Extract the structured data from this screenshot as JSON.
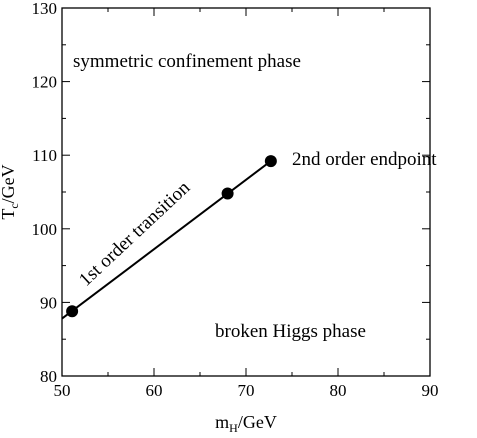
{
  "chart_data": {
    "type": "line",
    "xlabel_main": "m",
    "xlabel_sub": "H",
    "xlabel_unit": "/GeV",
    "ylabel_main": "T",
    "ylabel_sub": "c",
    "ylabel_unit": "/GeV",
    "xlim": [
      50,
      90
    ],
    "ylim": [
      80,
      130
    ],
    "xticks": [
      50,
      60,
      70,
      80,
      90
    ],
    "yticks": [
      80,
      90,
      100,
      110,
      120,
      130
    ],
    "grid": false,
    "line": {
      "x": [
        50,
        72.7
      ],
      "y": [
        87.8,
        109.2
      ]
    },
    "points": {
      "x": [
        51.1,
        68.0,
        72.7
      ],
      "y": [
        88.8,
        104.8,
        109.2
      ]
    },
    "annotations": {
      "symmetric": "symmetric confinement phase",
      "endpoint": "2nd order endpoint",
      "transition": "1st order transition",
      "broken": "broken Higgs phase"
    }
  }
}
